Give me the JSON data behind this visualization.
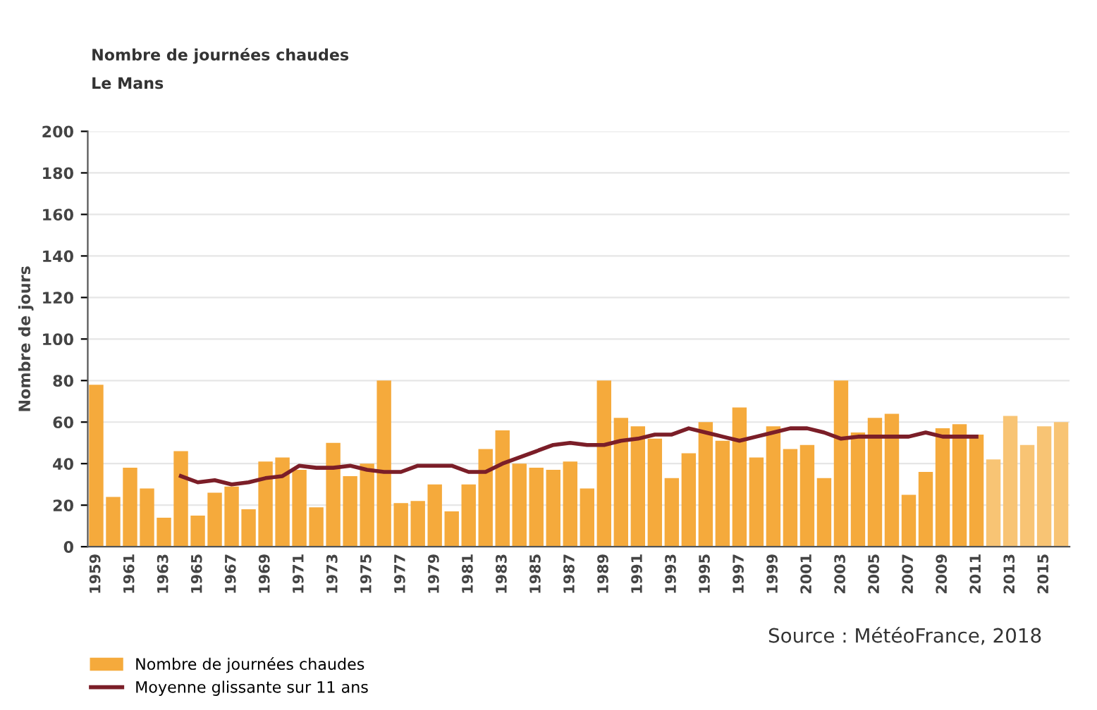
{
  "chart_data": {
    "type": "bar",
    "title": "Nombre de journées chaudes",
    "subtitle": "Le Mans",
    "ylabel": "Nombre de jours",
    "categories": [
      "1959",
      null,
      "1961",
      null,
      "1963",
      null,
      "1965",
      null,
      "1967",
      null,
      "1969",
      null,
      "1971",
      null,
      "1973",
      null,
      "1975",
      null,
      "1977",
      null,
      "1979",
      null,
      "1981",
      null,
      "1983",
      null,
      "1985",
      null,
      "1987",
      null,
      "1989",
      null,
      "1991",
      null,
      "1993",
      null,
      "1995",
      null,
      "1997",
      null,
      "1999",
      null,
      "2001",
      null,
      "2003",
      null,
      "2005",
      null,
      "2007",
      null,
      "2009",
      null,
      "2011",
      null,
      "2013",
      null,
      "2015",
      null
    ],
    "series": [
      {
        "name": "Nombre de journées chaudes",
        "color": "#f5aa3c",
        "colors": [
          "#f5aa3c",
          "#f5aa3c",
          "#f5aa3c",
          "#f5aa3c",
          "#f5aa3c",
          "#f5aa3c",
          "#f5aa3c",
          "#f5aa3c",
          "#f5aa3c",
          "#f5aa3c",
          "#f5aa3c",
          "#f5aa3c",
          "#f5aa3c",
          "#f5aa3c",
          "#f5aa3c",
          "#f5aa3c",
          "#f5aa3c",
          "#f5aa3c",
          "#f5aa3c",
          "#f5aa3c",
          "#f5aa3c",
          "#f5aa3c",
          "#f5aa3c",
          "#f5aa3c",
          "#f5aa3c",
          "#f5aa3c",
          "#f5aa3c",
          "#f5aa3c",
          "#f5aa3c",
          "#f5aa3c",
          "#f5aa3c",
          "#f5aa3c",
          "#f5aa3c",
          "#f5aa3c",
          "#f5aa3c",
          "#f5aa3c",
          "#f5aa3c",
          "#f5aa3c",
          "#f5aa3c",
          "#f5aa3c",
          "#f5aa3c",
          "#f5aa3c",
          "#f5aa3c",
          "#f5aa3c",
          "#f5aa3c",
          "#f5aa3c",
          "#f5aa3c",
          "#f5aa3c",
          "#f5aa3c",
          "#f5aa3c",
          "#f5aa3c",
          "#f5aa3c",
          "#f5aa3c",
          "#f8c474",
          "#f8c474",
          "#f8c474",
          "#f8c474",
          "#f8c474"
        ],
        "values": [
          78,
          24,
          38,
          28,
          14,
          46,
          15,
          26,
          29,
          18,
          41,
          43,
          37,
          19,
          50,
          34,
          40,
          80,
          21,
          22,
          30,
          17,
          30,
          47,
          56,
          40,
          38,
          37,
          41,
          28,
          80,
          62,
          58,
          52,
          33,
          45,
          60,
          51,
          67,
          43,
          58,
          47,
          49,
          33,
          80,
          55,
          62,
          64,
          25,
          36,
          57,
          59,
          54,
          42,
          63,
          49,
          58,
          60
        ]
      },
      {
        "name": "Moyenne glissante sur 11 ans",
        "type": "line",
        "color": "#7b1e28",
        "values": [
          null,
          null,
          null,
          null,
          null,
          34,
          31,
          32,
          30,
          31,
          33,
          34,
          39,
          38,
          38,
          39,
          37,
          36,
          36,
          39,
          39,
          39,
          36,
          36,
          40,
          43,
          46,
          49,
          50,
          49,
          49,
          51,
          52,
          54,
          54,
          57,
          55,
          53,
          51,
          53,
          55,
          57,
          57,
          55,
          52,
          53,
          53,
          53,
          53,
          55,
          53,
          53,
          53,
          null,
          null,
          null,
          null,
          null
        ]
      }
    ],
    "ylim": [
      0,
      200
    ],
    "yticks": [
      0,
      20,
      40,
      60,
      80,
      100,
      120,
      140,
      160,
      180,
      200
    ],
    "grid": "y",
    "legend": "bottom left",
    "annotations": [
      "Source : MétéoFrance, 2018"
    ]
  }
}
